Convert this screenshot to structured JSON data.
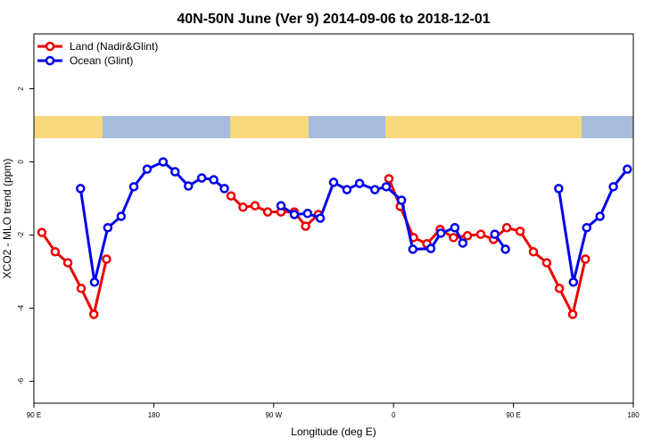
{
  "chart_data": {
    "type": "line",
    "title": "40N-50N June (Ver 9)   2014-09-06 to 2018-12-01",
    "xlabel": "Longitude (deg E)",
    "ylabel": "XCO2 - MLO trend (ppm)",
    "xlim": [
      90,
      540
    ],
    "xticks": [
      {
        "value": 90,
        "label": "90 E"
      },
      {
        "value": 180,
        "label": "180"
      },
      {
        "value": 270,
        "label": "90 W"
      },
      {
        "value": 360,
        "label": "0"
      },
      {
        "value": 450,
        "label": "90 E"
      },
      {
        "value": 540,
        "label": "180"
      }
    ],
    "ylim": [
      -6.6,
      3.5
    ],
    "yticks": [
      -6,
      -4,
      -2,
      0,
      2
    ],
    "legend": "top-left",
    "series": [
      {
        "name": "Land (Nadir&Glint)",
        "color": "#ee0000",
        "x": [
          96,
          106,
          115.5,
          125.5,
          135,
          144.5,
          null,
          238,
          247,
          256,
          265.5,
          275.5,
          285.5,
          294,
          303.5,
          null,
          356.5,
          365,
          375,
          385,
          395,
          405,
          415.5,
          425.5,
          435,
          445,
          455,
          465,
          475,
          484.5,
          494.5,
          504
        ],
        "values": [
          -1.93,
          -2.46,
          -2.76,
          -3.46,
          -4.17,
          -2.66,
          null,
          -0.93,
          -1.24,
          -1.2,
          -1.37,
          -1.37,
          -1.37,
          -1.76,
          -1.44,
          null,
          -0.46,
          -1.22,
          -2.07,
          -2.24,
          -1.85,
          -2.07,
          -2.02,
          -1.98,
          -2.12,
          -1.8,
          -1.9,
          -2.46,
          -2.76,
          -3.46,
          -4.17,
          -2.66
        ]
      },
      {
        "name": "Ocean (Glint)",
        "color": "#0000ee",
        "x": [
          125,
          135.5,
          145.5,
          155.5,
          165,
          175,
          187,
          196,
          206,
          216,
          225,
          233,
          null,
          275.5,
          285.5,
          295.5,
          305,
          315,
          325,
          334.5,
          346,
          354.5,
          366,
          374.5,
          388,
          395.5,
          406,
          412,
          null,
          436,
          444,
          null,
          484,
          495,
          505,
          515,
          525,
          535.5
        ],
        "values": [
          -0.73,
          -3.29,
          -1.8,
          -1.49,
          -0.68,
          -0.2,
          0,
          -0.27,
          -0.66,
          -0.44,
          -0.49,
          -0.73,
          null,
          -1.2,
          -1.44,
          -1.41,
          -1.54,
          -0.56,
          -0.76,
          -0.59,
          -0.76,
          -0.68,
          -1.05,
          -2.39,
          -2.37,
          -1.95,
          -1.8,
          -2.22,
          null,
          -1.98,
          -2.39,
          null,
          -0.73,
          -3.29,
          -1.8,
          -1.49,
          -0.68,
          -0.2
        ]
      }
    ]
  }
}
